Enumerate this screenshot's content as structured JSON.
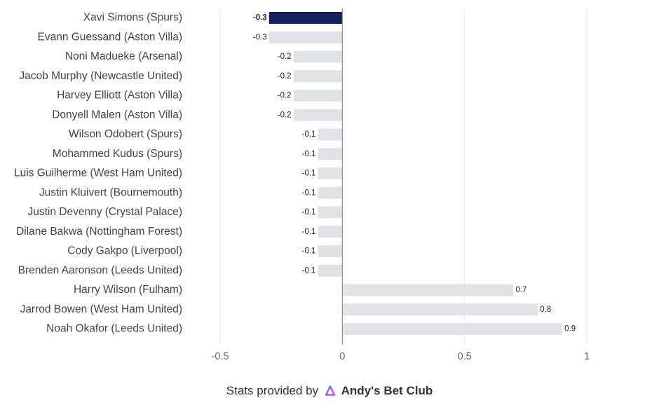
{
  "chart_data": {
    "type": "bar",
    "orientation": "horizontal",
    "categories": [
      "Xavi Simons (Spurs)",
      "Evann Guessand (Aston Villa)",
      "Noni Madueke (Arsenal)",
      "Jacob Murphy (Newcastle United)",
      "Harvey Elliott (Aston Villa)",
      "Donyell Malen (Aston Villa)",
      "Wilson Odobert (Spurs)",
      "Mohammed Kudus (Spurs)",
      "Luis Guilherme (West Ham United)",
      "Justin Kluivert (Bournemouth)",
      "Justin Devenny (Crystal Palace)",
      "Dilane Bakwa (Nottingham Forest)",
      "Cody Gakpo (Liverpool)",
      "Brenden Aaronson (Leeds United)",
      "Harry Wilson (Fulham)",
      "Jarrod Bowen (West Ham United)",
      "Noah Okafor (Leeds United)"
    ],
    "values": [
      -0.3,
      -0.3,
      -0.2,
      -0.2,
      -0.2,
      -0.2,
      -0.1,
      -0.1,
      -0.1,
      -0.1,
      -0.1,
      -0.1,
      -0.1,
      -0.1,
      0.7,
      0.8,
      0.9
    ],
    "data_labels": [
      "-0.3",
      "-0.3",
      "-0.2",
      "-0.2",
      "-0.2",
      "-0.2",
      "-0.1",
      "-0.1",
      "-0.1",
      "-0.1",
      "-0.1",
      "-0.1",
      "-0.1",
      "-0.1",
      "0.7",
      "0.8",
      "0.9"
    ],
    "highlight_index": 0,
    "xlim": [
      -0.5,
      1
    ],
    "xticks": [
      -0.5,
      0,
      0.5,
      1
    ],
    "xtick_labels": [
      "-0.5",
      "0",
      "0.5",
      "1"
    ],
    "grid": "vertical",
    "legend": "none",
    "title": "",
    "xlabel": "",
    "ylabel": ""
  },
  "colors": {
    "bar": "#dfe3e8",
    "highlight": "#14215a",
    "grid": "#e8e8e8",
    "zero_line": "#8a8fa0"
  },
  "footer": {
    "prefix": "Stats provided by",
    "brand": "Andy's Bet Club",
    "brand_icon": "andys-bet-club-logo-icon"
  }
}
